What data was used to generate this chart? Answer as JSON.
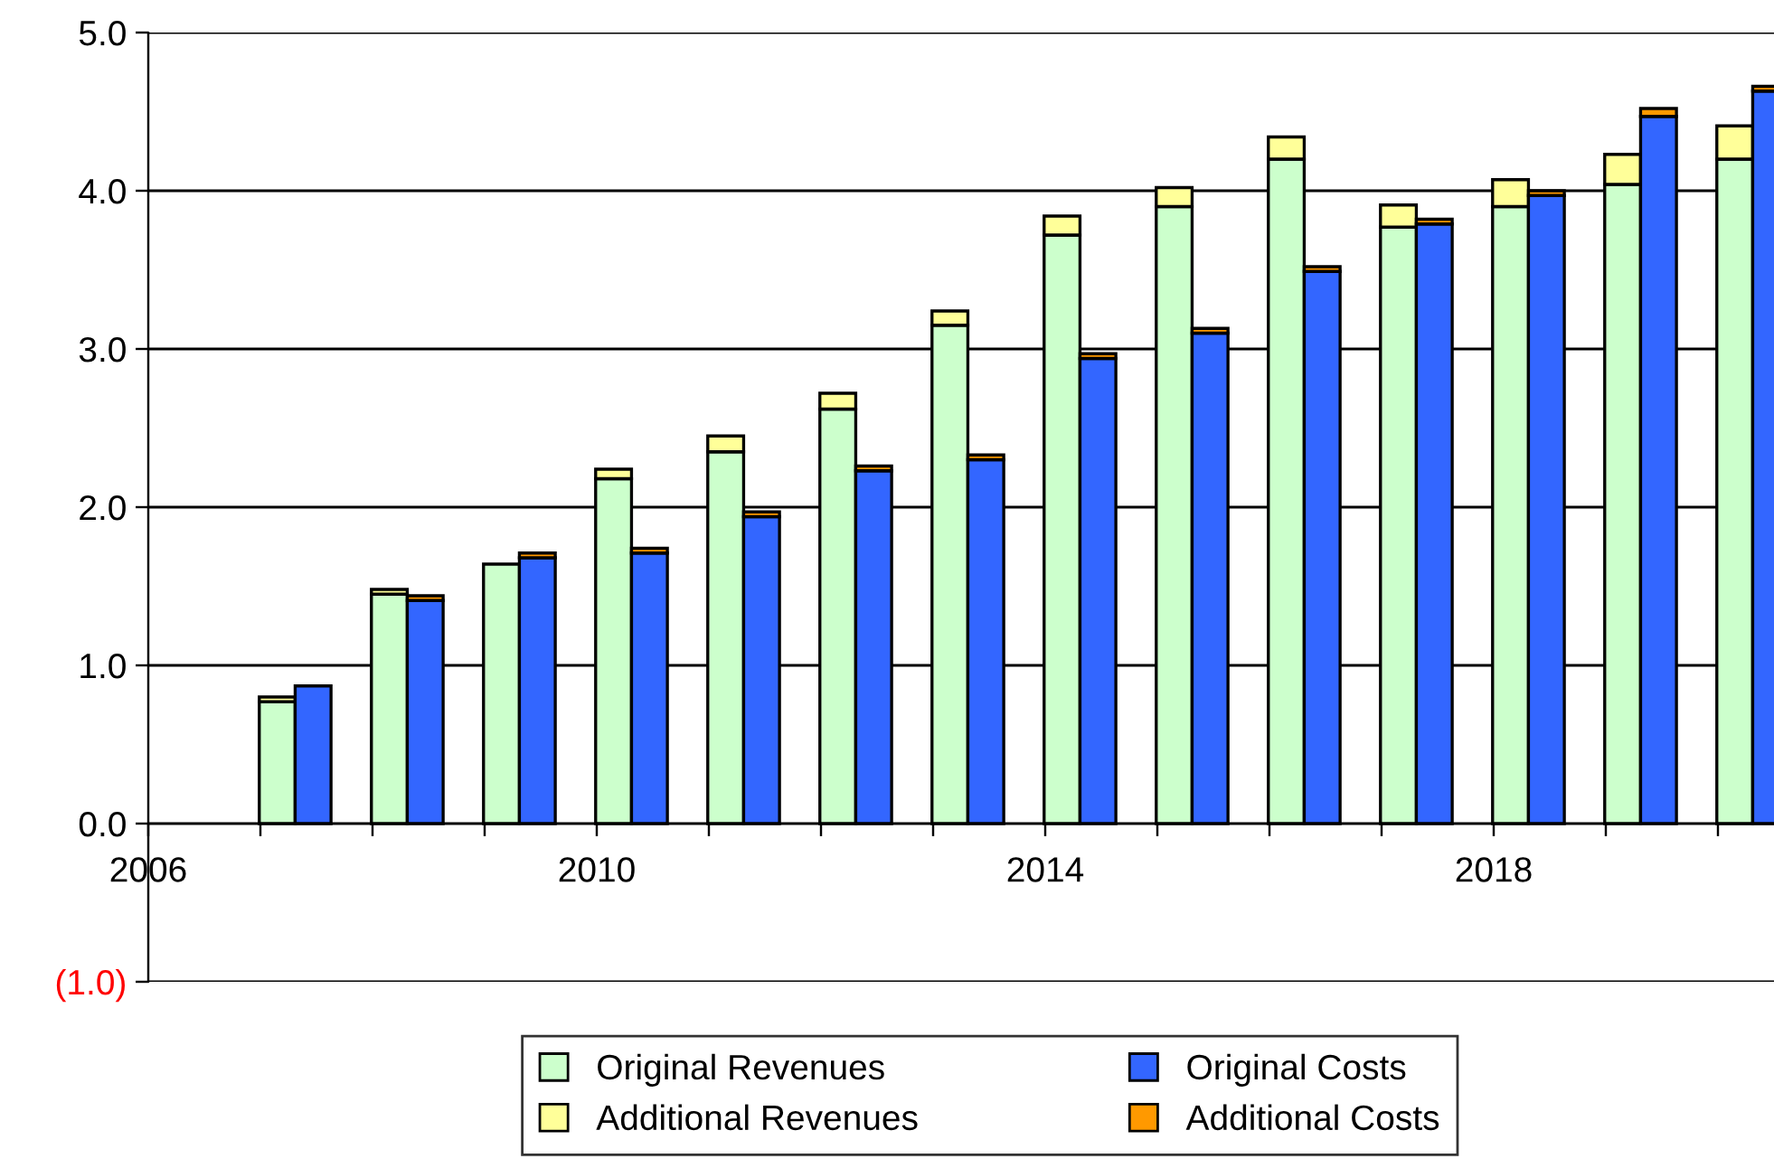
{
  "chart_data": [
    {
      "type": "bar",
      "stacked": true,
      "x": [
        2007.15,
        2008.15,
        2009.15,
        2010.15,
        2011.15,
        2012.15,
        2013.15,
        2014.15,
        2015.15,
        2016.15,
        2017.15,
        2018.15,
        2019.15,
        2020.15
      ],
      "series": [
        {
          "name": "Original Revenues",
          "color": "#ccffcc",
          "values": [
            0.77,
            1.45,
            1.64,
            2.18,
            2.35,
            2.62,
            3.15,
            3.72,
            3.9,
            4.2,
            3.77,
            3.9,
            4.04,
            4.2
          ]
        },
        {
          "name": "Additional Revenues",
          "color": "#ffff99",
          "values": [
            0.03,
            0.03,
            null,
            0.06,
            0.1,
            0.1,
            0.09,
            0.12,
            0.12,
            0.14,
            0.14,
            0.17,
            0.19,
            0.21
          ]
        }
      ],
      "xlim": [
        2006,
        2020.5
      ],
      "xticks": [
        2006,
        {
          "value": 2007,
          "label": null
        },
        {
          "value": 2008,
          "label": null
        },
        {
          "value": 2009,
          "label": null
        },
        2010,
        {
          "value": 2011,
          "label": null
        },
        {
          "value": 2012,
          "label": null
        },
        {
          "value": 2013,
          "label": null
        },
        2014,
        {
          "value": 2015,
          "label": null
        },
        {
          "value": 2016,
          "label": null
        },
        {
          "value": 2017,
          "label": null
        },
        2018,
        {
          "value": 2019,
          "label": null
        },
        {
          "value": 2020,
          "label": null
        }
      ],
      "ylim": [
        -1,
        5
      ],
      "yticks": [
        {
          "value": -1,
          "label": "(1.0)"
        },
        {
          "value": 0,
          "label": "0.0"
        },
        {
          "value": 1,
          "label": "1.0"
        },
        {
          "value": 2,
          "label": "2.0"
        },
        {
          "value": 3,
          "label": "3.0"
        },
        {
          "value": 4,
          "label": "4.0"
        },
        {
          "value": 5,
          "label": "5.0"
        }
      ],
      "grid": "y",
      "legend": "bottom"
    },
    {
      "type": "bar",
      "stacked": true,
      "x": [
        2007.47,
        2008.47,
        2009.47,
        2010.47,
        2011.47,
        2012.47,
        2013.47,
        2014.47,
        2015.47,
        2016.47,
        2017.47,
        2018.47,
        2019.47,
        2020.47
      ],
      "series": [
        {
          "name": "Original Costs",
          "color": "#3366ff",
          "values": [
            0.87,
            1.41,
            1.68,
            1.71,
            1.94,
            2.23,
            2.3,
            2.94,
            3.1,
            3.49,
            3.79,
            3.97,
            4.47,
            4.63
          ]
        },
        {
          "name": "Additional Costs",
          "color": "#ff9900",
          "values": [
            null,
            0.03,
            0.03,
            0.03,
            0.03,
            0.03,
            0.03,
            0.03,
            0.03,
            0.03,
            0.03,
            0.03,
            0.05,
            0.03
          ]
        }
      ],
      "xlim": [
        2006,
        2020.5
      ],
      "xticks": [
        2006,
        {
          "value": 2007,
          "label": null
        },
        {
          "value": 2008,
          "label": null
        },
        {
          "value": 2009,
          "label": null
        },
        2010,
        {
          "value": 2011,
          "label": null
        },
        {
          "value": 2012,
          "label": null
        },
        {
          "value": 2013,
          "label": null
        },
        2014,
        {
          "value": 2015,
          "label": null
        },
        {
          "value": 2016,
          "label": null
        },
        {
          "value": 2017,
          "label": null
        },
        2018,
        {
          "value": 2019,
          "label": null
        },
        {
          "value": 2020,
          "label": null
        }
      ],
      "ylim": [
        -1,
        5
      ],
      "yticks": [
        -1,
        0,
        1,
        2,
        3,
        4,
        5
      ],
      "tick_labels": false,
      "legend": "bottom"
    }
  ]
}
